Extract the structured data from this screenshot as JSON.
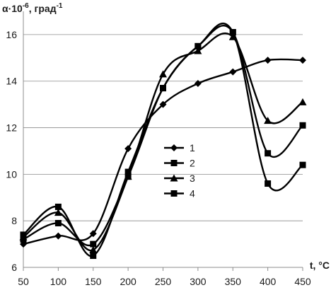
{
  "chart_data": {
    "type": "line",
    "ylabel": "α·10",
    "ylabel_exp": "-6",
    "ylabel_unit": ", град",
    "ylabel_unit_exp": "-1",
    "xlabel": "t, °C",
    "x": [
      50,
      100,
      150,
      200,
      250,
      300,
      350,
      400,
      450
    ],
    "x_tick_labels": [
      "50",
      "100",
      "150",
      "200",
      "250",
      "300",
      "350",
      "400",
      "450"
    ],
    "y_tick_labels": [
      "6",
      "8",
      "10",
      "12",
      "14",
      "16"
    ],
    "xlim": [
      50,
      450
    ],
    "ylim": [
      6,
      17
    ],
    "y_ticks": [
      6,
      8,
      10,
      12,
      14,
      16
    ],
    "grid": "horizontal",
    "legend_position": "center",
    "series": [
      {
        "name": "1",
        "marker": "diamond",
        "values": [
          7.0,
          7.35,
          7.45,
          11.1,
          13.0,
          13.9,
          14.4,
          14.9,
          14.9
        ]
      },
      {
        "name": "2",
        "marker": "square",
        "values": [
          7.2,
          7.9,
          7.0,
          9.9,
          13.7,
          15.5,
          16.1,
          9.6,
          10.4
        ]
      },
      {
        "name": "3",
        "marker": "triangle",
        "values": [
          7.3,
          8.35,
          6.75,
          9.9,
          14.3,
          15.3,
          15.9,
          12.3,
          13.1
        ]
      },
      {
        "name": "4",
        "marker": "square",
        "values": [
          7.4,
          8.6,
          6.5,
          10.1,
          13.7,
          15.5,
          16.1,
          10.9,
          12.1
        ]
      }
    ]
  }
}
